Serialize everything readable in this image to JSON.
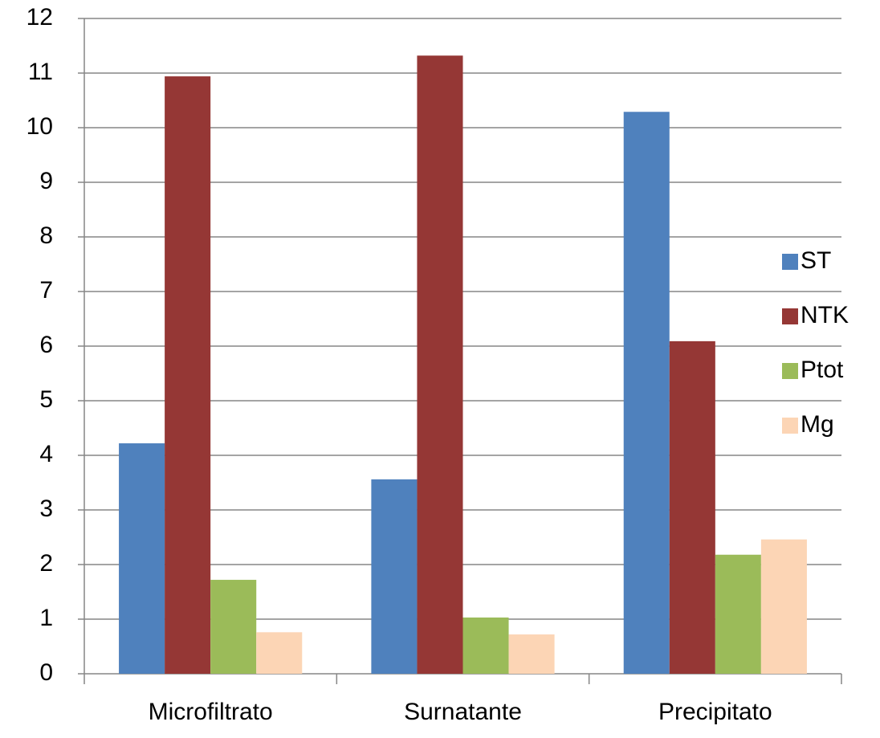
{
  "chart_data": {
    "type": "bar",
    "categories": [
      "Microfiltrato",
      "Surnatante",
      "Precipitato"
    ],
    "series": [
      {
        "name": "ST",
        "color": "#4f81bd",
        "values": [
          4.22,
          3.56,
          10.29
        ]
      },
      {
        "name": "NTK",
        "color": "#953735",
        "values": [
          10.94,
          11.32,
          6.09
        ]
      },
      {
        "name": "Ptot",
        "color": "#9bbb59",
        "values": [
          1.72,
          1.03,
          2.18
        ]
      },
      {
        "name": "Mg",
        "color": "#fcd5b5",
        "values": [
          0.76,
          0.72,
          2.46
        ]
      }
    ],
    "ylim": [
      0,
      12
    ],
    "yticks": [
      0,
      1,
      2,
      3,
      4,
      5,
      6,
      7,
      8,
      9,
      10,
      11,
      12
    ],
    "grid": true,
    "legend": "right"
  }
}
